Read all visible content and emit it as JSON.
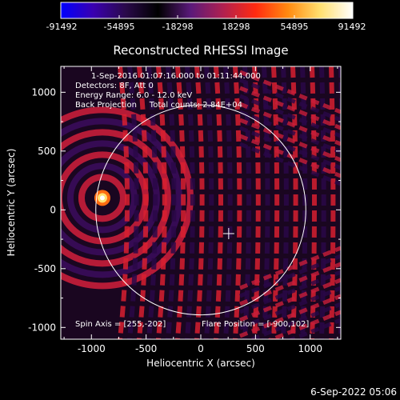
{
  "colorbar": {
    "tick_labels": [
      "-91492",
      "-54895",
      "-18298",
      "18298",
      "54895",
      "91492"
    ],
    "stops": [
      "#0000ff",
      "#3a00b0",
      "#2a0a4a",
      "#000000",
      "#5a1a7a",
      "#b02050",
      "#ff2a10",
      "#ff8a10",
      "#ffe070",
      "#ffffff"
    ]
  },
  "plot": {
    "title": "Reconstructed RHESSI Image",
    "info_lines": [
      "1-Sep-2016 01:07:16.000 to 01:11:44.000",
      "Detectors: 8F, Att 0",
      "Energy Range: 6.0 - 12.0 keV",
      "Back Projection     Total counts: 2.84E+04"
    ],
    "spin_axis": "Spin Axis = [255,-202]",
    "flare_position": "Flare Position = [-900,102]",
    "xlabel": "Heliocentric X (arcsec)",
    "ylabel": "Heliocentric Y (arcsec)",
    "x_ticks": [
      "-1000",
      "-500",
      "0",
      "500",
      "1000"
    ],
    "y_ticks": [
      "1000",
      "500",
      "0",
      "-500",
      "-1000"
    ],
    "x_range": [
      -1280,
      1280
    ],
    "y_range": [
      -1100,
      1220
    ],
    "solar_radius": 960,
    "spin_axis_xy": [
      255,
      -202
    ],
    "flare_xy": [
      -900,
      102
    ]
  },
  "footer": {
    "timestamp": "6-Sep-2022 05:06"
  }
}
